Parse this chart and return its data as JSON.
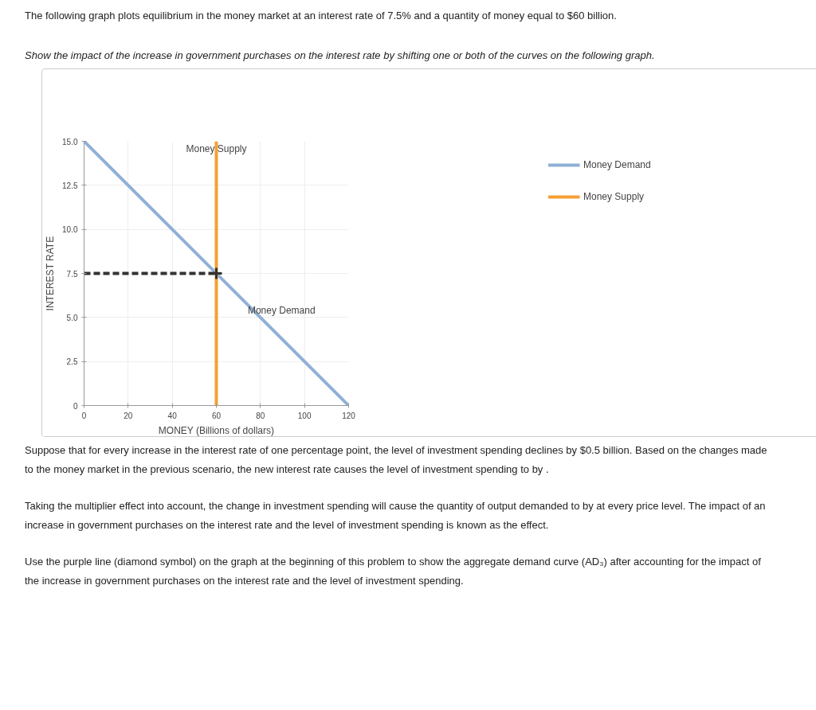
{
  "chart_data": {
    "type": "line",
    "title": "The following graph plots equilibrium in the money market at an interest rate of 7.5% and a quantity of money equal to $60 billion.",
    "subtitle": "Show the impact of the increase in government purchases on the interest rate by shifting one or both of the curves on the following graph.",
    "xlabel": "MONEY (Billions of dollars)",
    "ylabel": "INTEREST RATE",
    "xlim": [
      0,
      120
    ],
    "xticks": [
      0,
      20,
      40,
      60,
      80,
      100,
      120
    ],
    "ylim": [
      0,
      15
    ],
    "yticks": [
      0,
      2.5,
      {
        "value": 5,
        "label": "5.0"
      },
      7.5,
      {
        "value": 10,
        "label": "10.0"
      },
      12.5,
      {
        "value": 15,
        "label": "15.0"
      }
    ],
    "grid": true,
    "legend": "right",
    "series": [
      {
        "name": "Money Demand",
        "color": "#8fb0d6",
        "x": [
          0,
          120
        ],
        "values": [
          15,
          0
        ]
      },
      {
        "name": "Money Supply",
        "color": "#f5a033",
        "x": [
          60,
          60
        ],
        "values": [
          0,
          15
        ]
      },
      {
        "color": "#333333",
        "line_style": "dashed",
        "x": [
          0,
          60
        ],
        "values": [
          7.5,
          7.5
        ]
      },
      {
        "type": "scatter",
        "color": "#333333",
        "marker": "cross",
        "x": [
          60
        ],
        "values": [
          7.5
        ]
      }
    ],
    "annotations": [
      "Suppose that for every increase in the interest rate of one percentage point, the level of investment spending declines by $0.5 billion. Based on the changes made to the money market in the previous scenario, the new interest rate causes the level of investment spending to by .",
      "Taking the multiplier effect into account, the change in investment spending will cause the quantity of output demanded to by at every price level. The impact of an increase in government purchases on the interest rate and the level of investment spending is known as the effect.",
      "Use the purple line (diamond symbol) on the graph at the beginning of this problem to show the aggregate demand curve (AD₃) after accounting for the impact of the increase in government purchases on the interest rate and the level of investment spending."
    ]
  }
}
